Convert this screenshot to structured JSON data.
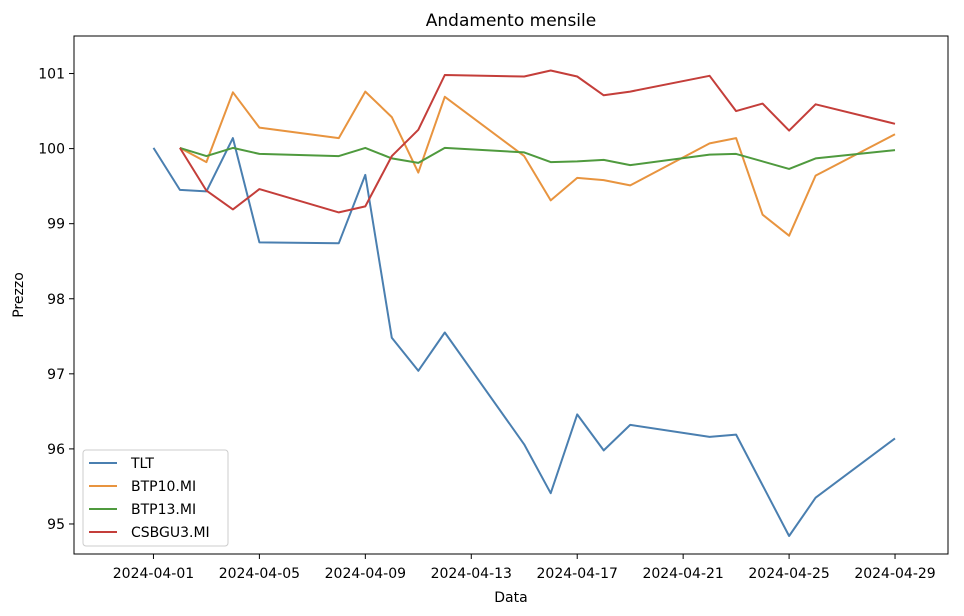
{
  "chart_data": {
    "type": "line",
    "title": "Andamento mensile",
    "xlabel": "Data",
    "ylabel": "Prezzo",
    "x_ticks": [
      "2024-04-01",
      "2024-04-05",
      "2024-04-09",
      "2024-04-13",
      "2024-04-17",
      "2024-04-21",
      "2024-04-25",
      "2024-04-29"
    ],
    "y_ticks": [
      95,
      96,
      97,
      98,
      99,
      100,
      101
    ],
    "xlim": [
      "2024-03-29",
      "2024-05-01"
    ],
    "ylim": [
      94.6,
      101.5
    ],
    "grid": false,
    "legend_position": "lower-left",
    "series": [
      {
        "name": "TLT",
        "color": "#4a7fb0",
        "points": [
          [
            "2024-04-01",
            100.01
          ],
          [
            "2024-04-02",
            99.45
          ],
          [
            "2024-04-03",
            99.43
          ],
          [
            "2024-04-04",
            100.14
          ],
          [
            "2024-04-05",
            98.75
          ],
          [
            "2024-04-08",
            98.74
          ],
          [
            "2024-04-09",
            99.65
          ],
          [
            "2024-04-10",
            97.48
          ],
          [
            "2024-04-11",
            97.04
          ],
          [
            "2024-04-12",
            97.55
          ],
          [
            "2024-04-15",
            96.06
          ],
          [
            "2024-04-16",
            95.41
          ],
          [
            "2024-04-17",
            96.46
          ],
          [
            "2024-04-18",
            95.98
          ],
          [
            "2024-04-19",
            96.32
          ],
          [
            "2024-04-22",
            96.16
          ],
          [
            "2024-04-23",
            96.19
          ],
          [
            "2024-04-25",
            94.84
          ],
          [
            "2024-04-26",
            95.35
          ],
          [
            "2024-04-29",
            96.14
          ]
        ]
      },
      {
        "name": "BTP10.MI",
        "color": "#e8943f",
        "points": [
          [
            "2024-04-02",
            100.01
          ],
          [
            "2024-04-03",
            99.82
          ],
          [
            "2024-04-04",
            100.75
          ],
          [
            "2024-04-05",
            100.28
          ],
          [
            "2024-04-08",
            100.14
          ],
          [
            "2024-04-09",
            100.76
          ],
          [
            "2024-04-10",
            100.42
          ],
          [
            "2024-04-11",
            99.68
          ],
          [
            "2024-04-12",
            100.69
          ],
          [
            "2024-04-15",
            99.9
          ],
          [
            "2024-04-16",
            99.31
          ],
          [
            "2024-04-17",
            99.61
          ],
          [
            "2024-04-18",
            99.58
          ],
          [
            "2024-04-19",
            99.51
          ],
          [
            "2024-04-22",
            100.07
          ],
          [
            "2024-04-23",
            100.14
          ],
          [
            "2024-04-24",
            99.12
          ],
          [
            "2024-04-25",
            98.84
          ],
          [
            "2024-04-26",
            99.64
          ],
          [
            "2024-04-29",
            100.19
          ]
        ]
      },
      {
        "name": "BTP13.MI",
        "color": "#4f9a3e",
        "points": [
          [
            "2024-04-02",
            100.01
          ],
          [
            "2024-04-03",
            99.9
          ],
          [
            "2024-04-04",
            100.01
          ],
          [
            "2024-04-05",
            99.93
          ],
          [
            "2024-04-08",
            99.9
          ],
          [
            "2024-04-09",
            100.01
          ],
          [
            "2024-04-10",
            99.87
          ],
          [
            "2024-04-11",
            99.81
          ],
          [
            "2024-04-12",
            100.01
          ],
          [
            "2024-04-15",
            99.95
          ],
          [
            "2024-04-16",
            99.82
          ],
          [
            "2024-04-17",
            99.83
          ],
          [
            "2024-04-18",
            99.85
          ],
          [
            "2024-04-19",
            99.78
          ],
          [
            "2024-04-22",
            99.92
          ],
          [
            "2024-04-23",
            99.93
          ],
          [
            "2024-04-25",
            99.73
          ],
          [
            "2024-04-26",
            99.87
          ],
          [
            "2024-04-29",
            99.98
          ]
        ]
      },
      {
        "name": "CSBGU3.MI",
        "color": "#c43e3a",
        "points": [
          [
            "2024-04-02",
            100.01
          ],
          [
            "2024-04-03",
            99.44
          ],
          [
            "2024-04-04",
            99.19
          ],
          [
            "2024-04-05",
            99.46
          ],
          [
            "2024-04-08",
            99.15
          ],
          [
            "2024-04-09",
            99.23
          ],
          [
            "2024-04-10",
            99.9
          ],
          [
            "2024-04-11",
            100.25
          ],
          [
            "2024-04-12",
            100.98
          ],
          [
            "2024-04-15",
            100.96
          ],
          [
            "2024-04-16",
            101.04
          ],
          [
            "2024-04-17",
            100.96
          ],
          [
            "2024-04-18",
            100.71
          ],
          [
            "2024-04-19",
            100.76
          ],
          [
            "2024-04-22",
            100.97
          ],
          [
            "2024-04-23",
            100.5
          ],
          [
            "2024-04-24",
            100.6
          ],
          [
            "2024-04-25",
            100.24
          ],
          [
            "2024-04-26",
            100.59
          ],
          [
            "2024-04-29",
            100.33
          ]
        ]
      }
    ]
  }
}
